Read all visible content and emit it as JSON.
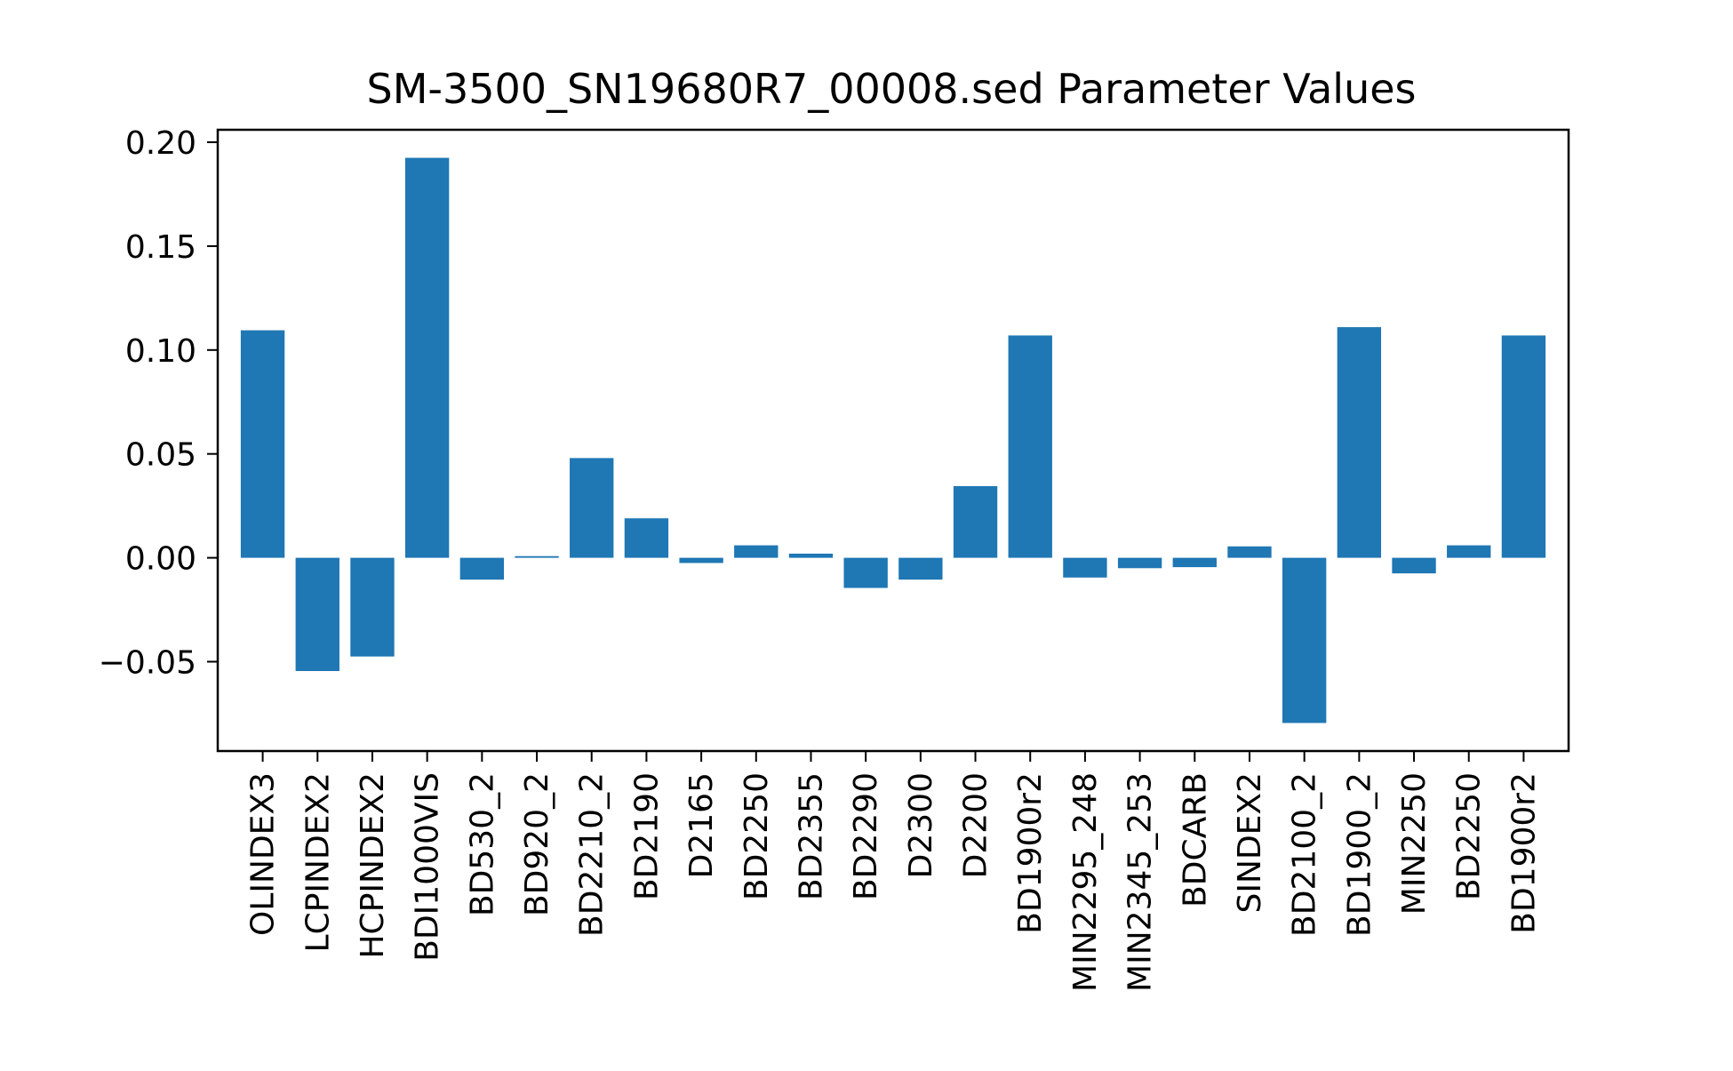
{
  "chart_data": {
    "type": "bar",
    "title": "SM-3500_SN19680R7_00008.sed Parameter Values",
    "xlabel": "",
    "ylabel": "",
    "categories": [
      "OLINDEX3",
      "LCPINDEX2",
      "HCPINDEX2",
      "BDI1000VIS",
      "BD530_2",
      "BD920_2",
      "BD2210_2",
      "BD2190",
      "D2165",
      "BD2250",
      "BD2355",
      "BD2290",
      "D2300",
      "D2200",
      "BD1900r2",
      "MIN2295_248",
      "MIN2345_253",
      "BDCARB",
      "SINDEX2",
      "BD2100_2",
      "BD1900_2",
      "MIN2250",
      "BD2250",
      "BD1900r2"
    ],
    "values": [
      0.1095,
      -0.0545,
      -0.0475,
      0.1925,
      -0.0105,
      0.0008,
      0.048,
      0.019,
      -0.0025,
      0.006,
      0.002,
      -0.0145,
      -0.0105,
      0.0345,
      0.107,
      -0.0095,
      -0.005,
      -0.0045,
      0.0055,
      -0.0795,
      0.111,
      -0.0075,
      0.006,
      0.107
    ],
    "ylim": [
      -0.093,
      0.206
    ],
    "yticks": [
      -0.05,
      0.0,
      0.05,
      0.1,
      0.15,
      0.2
    ],
    "ytick_labels": [
      "−0.05",
      "0.00",
      "0.05",
      "0.10",
      "0.15",
      "0.20"
    ],
    "grid": false,
    "bar_color": "#1f77b4"
  }
}
